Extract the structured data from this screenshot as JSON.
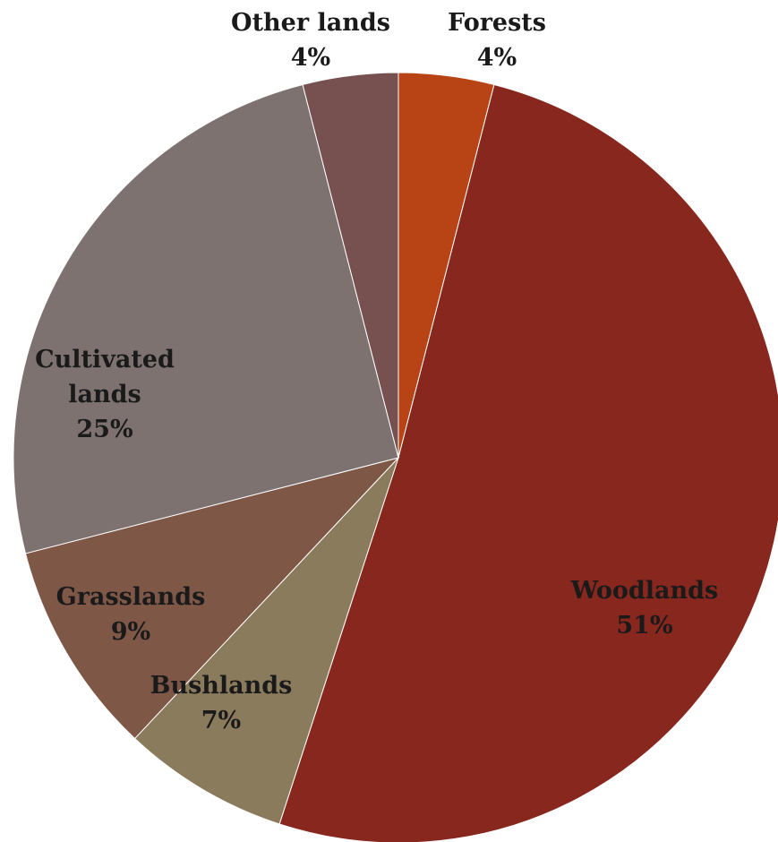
{
  "chart_data": {
    "type": "pie",
    "slices": [
      {
        "name": "Forests",
        "value": 4,
        "percent_label": "4%",
        "color": "#B84314"
      },
      {
        "name": "Woodlands",
        "value": 51,
        "percent_label": "51%",
        "color": "#88271D"
      },
      {
        "name": "Bushlands",
        "value": 7,
        "percent_label": "7%",
        "color": "#8B7B5D"
      },
      {
        "name": "Grasslands",
        "value": 9,
        "percent_label": "9%",
        "color": "#7F5747"
      },
      {
        "name": "Cultivated lands",
        "value": 25,
        "percent_label": "25%",
        "color": "#7E7271"
      },
      {
        "name": "Other lands",
        "value": 4,
        "percent_label": "4%",
        "color": "#775050"
      }
    ]
  }
}
